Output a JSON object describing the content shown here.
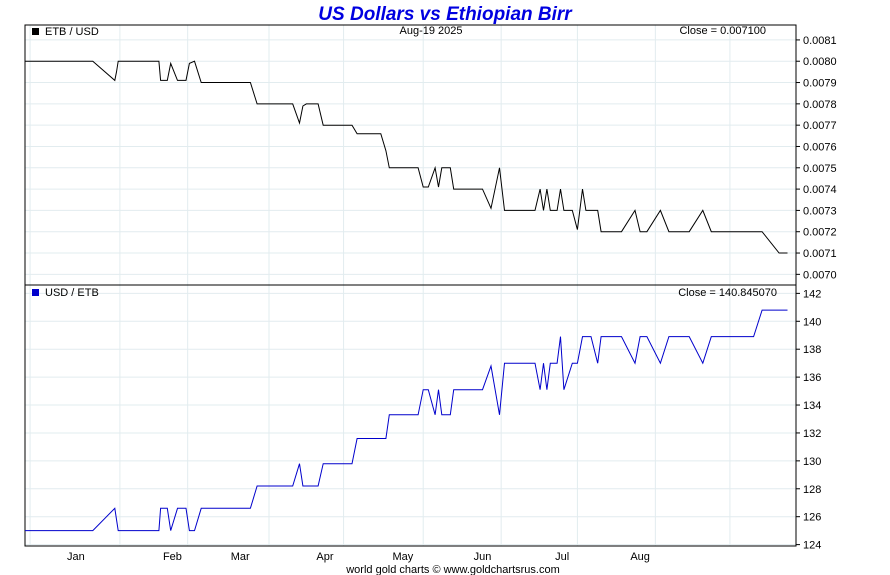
{
  "title": "US Dollars vs Ethiopian Birr",
  "date_label": "Aug-19  2025",
  "footer": "world gold charts © www.goldchartsrus.com",
  "colors": {
    "title": "#0000e0",
    "top_series": "#000000",
    "bottom_series": "#0000cc",
    "grid": "#e2ecef"
  },
  "chart_data": [
    {
      "type": "line",
      "series_label": "ETB / USD",
      "close_label": "Close = 0.007100",
      "ylim": [
        0.00695,
        0.00817
      ],
      "y_ticks": [
        "0.0081",
        "0.0080",
        "0.0079",
        "0.0078",
        "0.0077",
        "0.0076",
        "0.0075",
        "0.0074",
        "0.0073",
        "0.0072",
        "0.0071",
        "0.0070"
      ],
      "x_ticks": [
        "Jan",
        "Feb",
        "Mar",
        "Apr",
        "May",
        "Jun",
        "Jul",
        "Aug"
      ],
      "grid": true,
      "series": [
        {
          "x": [
            0,
            4,
            5.3,
            5.4,
            5.5,
            7.9,
            8,
            8.4,
            8.6,
            9,
            9.5,
            9.7,
            10,
            10.4,
            12.5,
            13.3,
            13.7,
            15.8,
            16.2,
            16.4,
            16.6,
            17.3,
            17.6,
            18.2,
            19.3,
            19.6,
            21,
            21.3,
            21.5,
            22.5,
            22.8,
            23.2,
            23.5,
            23.8,
            24.2,
            24.4,
            24.6,
            25.1,
            25.3,
            25.5,
            26,
            27,
            27.5,
            28,
            28.3,
            29.5,
            29.9,
            30.1,
            30.4,
            30.6,
            30.8,
            31,
            31.4,
            31.6,
            31.8,
            32.3,
            32.6,
            32.9,
            33.1,
            33.4,
            33.8,
            34,
            34.3,
            34.6,
            35.2,
            36,
            36.3,
            36.5,
            36.7,
            37.5,
            38,
            38.5,
            39.2,
            40,
            40.5,
            40.7,
            41,
            42.5,
            43,
            43.5,
            44.5,
            45
          ],
          "values": [
            0.008,
            0.008,
            0.00791,
            0.00795,
            0.008,
            0.008,
            0.00791,
            0.00791,
            0.00799,
            0.00791,
            0.00791,
            0.00799,
            0.008,
            0.0079,
            0.0079,
            0.0079,
            0.0078,
            0.0078,
            0.00771,
            0.00779,
            0.0078,
            0.0078,
            0.0077,
            0.0077,
            0.0077,
            0.00766,
            0.00766,
            0.00758,
            0.0075,
            0.0075,
            0.0075,
            0.0075,
            0.00741,
            0.00741,
            0.0075,
            0.00741,
            0.0075,
            0.0075,
            0.0074,
            0.0074,
            0.0074,
            0.0074,
            0.00731,
            0.0075,
            0.0073,
            0.0073,
            0.0073,
            0.0073,
            0.0074,
            0.0073,
            0.0074,
            0.0073,
            0.0073,
            0.0074,
            0.0073,
            0.0073,
            0.00721,
            0.0074,
            0.0073,
            0.0073,
            0.0073,
            0.0072,
            0.0072,
            0.0072,
            0.0072,
            0.0073,
            0.0072,
            0.0072,
            0.0072,
            0.0073,
            0.0072,
            0.0072,
            0.0072,
            0.0073,
            0.0072,
            0.0072,
            0.0072,
            0.0072,
            0.0072,
            0.0072,
            0.0071,
            0.0071
          ]
        }
      ]
    },
    {
      "type": "line",
      "series_label": "USD / ETB",
      "close_label": "Close = 140.845070",
      "ylim": [
        123.9,
        142.6
      ],
      "y_ticks": [
        "142",
        "140",
        "138",
        "136",
        "134",
        "132",
        "130",
        "128",
        "126",
        "124"
      ],
      "x_ticks": [
        "Jan",
        "Feb",
        "Mar",
        "Apr",
        "May",
        "Jun",
        "Jul",
        "Aug"
      ],
      "grid": true,
      "series": [
        {
          "x": [
            0,
            4,
            5.3,
            5.4,
            5.5,
            7.9,
            8,
            8.4,
            8.6,
            9,
            9.5,
            9.7,
            10,
            10.4,
            12.5,
            13.3,
            13.7,
            15.8,
            16.2,
            16.4,
            16.6,
            17.3,
            17.6,
            18.2,
            19.3,
            19.6,
            21,
            21.3,
            21.5,
            22.5,
            22.8,
            23.2,
            23.5,
            23.8,
            24.2,
            24.4,
            24.6,
            25.1,
            25.3,
            25.5,
            26,
            27,
            27.5,
            28,
            28.3,
            29.5,
            29.9,
            30.1,
            30.4,
            30.6,
            30.8,
            31,
            31.4,
            31.6,
            31.8,
            32.3,
            32.6,
            32.9,
            33.1,
            33.4,
            33.8,
            34,
            34.3,
            34.6,
            35.2,
            36,
            36.3,
            36.5,
            36.7,
            37.5,
            38,
            38.5,
            39.2,
            40,
            40.5,
            40.7,
            41,
            42.5,
            43,
            43.5,
            44.5,
            45
          ],
          "values": [
            125.0,
            125.0,
            126.6,
            125.8,
            125.0,
            125.0,
            126.6,
            126.6,
            125.0,
            126.6,
            126.6,
            125.0,
            125.0,
            126.6,
            126.6,
            126.6,
            128.2,
            128.2,
            129.8,
            128.2,
            128.2,
            128.2,
            129.8,
            129.8,
            129.8,
            131.6,
            131.6,
            131.6,
            133.3,
            133.3,
            133.3,
            133.3,
            135.1,
            135.1,
            133.3,
            135.1,
            133.3,
            133.3,
            135.1,
            135.1,
            135.1,
            135.1,
            136.8,
            133.3,
            137.0,
            137.0,
            137.0,
            137.0,
            135.1,
            137.0,
            135.1,
            137.0,
            137.0,
            138.9,
            135.1,
            137.0,
            137.0,
            138.9,
            138.9,
            138.9,
            137.0,
            138.9,
            138.9,
            138.9,
            138.9,
            137.0,
            138.9,
            138.9,
            138.9,
            137.0,
            138.9,
            138.9,
            138.9,
            137.0,
            138.9,
            138.9,
            138.9,
            138.9,
            138.9,
            140.8,
            140.8,
            140.8
          ]
        }
      ]
    }
  ]
}
